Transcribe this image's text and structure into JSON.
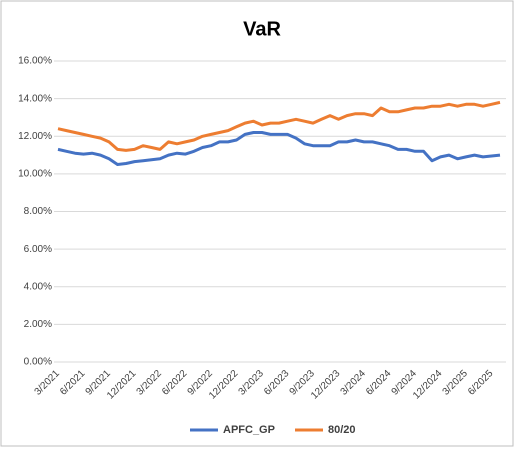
{
  "chart_data": {
    "type": "line",
    "title": "VaR",
    "categories": [
      "3/2021",
      null,
      null,
      "6/2021",
      null,
      null,
      "9/2021",
      null,
      null,
      "12/2021",
      null,
      null,
      "3/2022",
      null,
      null,
      "6/2022",
      null,
      null,
      "9/2022",
      null,
      null,
      "12/2022",
      null,
      null,
      "3/2023",
      null,
      null,
      "6/2023",
      null,
      null,
      "9/2023",
      null,
      null,
      "12/2023",
      null,
      null,
      "3/2024",
      null,
      null,
      "6/2024",
      null,
      null,
      "9/2024",
      null,
      null,
      "12/2024",
      null,
      null,
      "3/2025",
      null,
      null,
      "6/2025",
      null
    ],
    "series": [
      {
        "name": "APFC_GP",
        "color": "#4472c4",
        "values": [
          11.3,
          11.2,
          11.1,
          11.05,
          11.1,
          11.0,
          10.8,
          10.5,
          10.55,
          10.65,
          10.7,
          10.75,
          10.8,
          11.0,
          11.1,
          11.05,
          11.2,
          11.4,
          11.5,
          11.7,
          11.7,
          11.8,
          12.1,
          12.2,
          12.2,
          12.1,
          12.1,
          12.1,
          11.9,
          11.6,
          11.5,
          11.5,
          11.5,
          11.7,
          11.7,
          11.8,
          11.7,
          11.7,
          11.6,
          11.5,
          11.3,
          11.3,
          11.2,
          11.2,
          10.7,
          10.9,
          11.0,
          10.8,
          10.9,
          11.0,
          10.9,
          10.95,
          11.0
        ]
      },
      {
        "name": "80/20",
        "color": "#ed7d31",
        "values": [
          12.4,
          12.3,
          12.2,
          12.1,
          12.0,
          11.9,
          11.7,
          11.3,
          11.25,
          11.3,
          11.5,
          11.4,
          11.3,
          11.7,
          11.6,
          11.7,
          11.8,
          12.0,
          12.1,
          12.2,
          12.3,
          12.5,
          12.7,
          12.8,
          12.6,
          12.7,
          12.7,
          12.8,
          12.9,
          12.8,
          12.7,
          12.9,
          13.1,
          12.9,
          13.1,
          13.2,
          13.2,
          13.1,
          13.5,
          13.3,
          13.3,
          13.4,
          13.5,
          13.5,
          13.6,
          13.6,
          13.7,
          13.6,
          13.7,
          13.7,
          13.6,
          13.7,
          13.8
        ]
      }
    ],
    "ylim": [
      0,
      16
    ],
    "yticks": [
      {
        "value": 0,
        "label": "0.00%"
      },
      {
        "value": 2,
        "label": "2.00%"
      },
      {
        "value": 4,
        "label": "4.00%"
      },
      {
        "value": 6,
        "label": "6.00%"
      },
      {
        "value": 8,
        "label": "8.00%"
      },
      {
        "value": 10,
        "label": "10.00%"
      },
      {
        "value": 12,
        "label": "12.00%"
      },
      {
        "value": 14,
        "label": "14.00%"
      },
      {
        "value": 16,
        "label": "16.00%"
      }
    ],
    "grid": true,
    "legend": "bottom"
  }
}
